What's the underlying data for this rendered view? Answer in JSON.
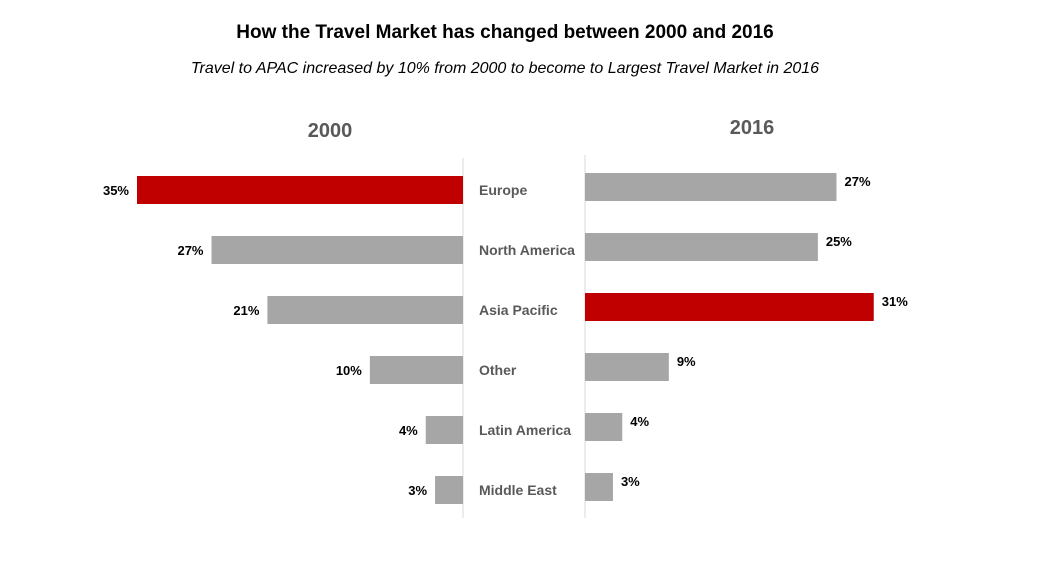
{
  "chart_data": {
    "type": "bar",
    "title": "How the Travel Market has changed between 2000 and 2016",
    "subtitle": "Travel to APAC increased by 10% from 2000 to become to Largest Travel Market in 2016",
    "categories": [
      "Europe",
      "North America",
      "Asia Pacific",
      "Other",
      "Latin America",
      "Middle East"
    ],
    "series": [
      {
        "name": "2000",
        "values": [
          35,
          27,
          21,
          10,
          4,
          3
        ],
        "labels": [
          "35%",
          "27%",
          "21%",
          "10%",
          "4%",
          "3%"
        ],
        "highlight_index": 0
      },
      {
        "name": "2016",
        "values": [
          27,
          25,
          31,
          9,
          4,
          3
        ],
        "labels": [
          "27%",
          "25%",
          "31%",
          "9%",
          "4%",
          "3%"
        ],
        "highlight_index": 2
      }
    ],
    "colors": {
      "bar": "#a6a6a6",
      "highlight": "#c00000",
      "axis": "#d9d9d9"
    },
    "orientation": "horizontal-butterfly",
    "grid": false,
    "legend": "none"
  }
}
